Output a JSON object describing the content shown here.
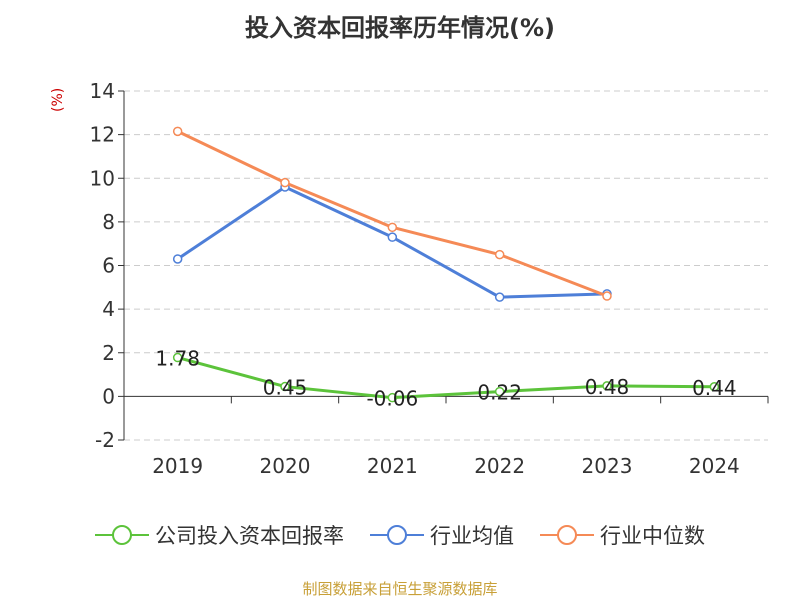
{
  "chart_data": {
    "type": "line",
    "title": "投入资本回报率历年情况(%)",
    "ylabel": "(%)",
    "categories": [
      "2019",
      "2020",
      "2021",
      "2022",
      "2023",
      "2024"
    ],
    "ylim": [
      -2,
      14
    ],
    "yticks": [
      -2,
      0,
      2,
      4,
      6,
      8,
      10,
      12,
      14
    ],
    "grid": true,
    "legend_position": "bottom",
    "series": [
      {
        "name": "公司投入资本回报率",
        "color": "#5cc33b",
        "values": [
          1.78,
          0.45,
          -0.06,
          0.22,
          0.48,
          0.44
        ],
        "labels": [
          "1.78",
          "0.45",
          "-0.06",
          "0.22",
          "0.48",
          "0.44"
        ]
      },
      {
        "name": "行业均值",
        "color": "#4e7fd8",
        "values": [
          6.3,
          9.6,
          7.3,
          4.55,
          4.7,
          null
        ]
      },
      {
        "name": "行业中位数",
        "color": "#f58a56",
        "values": [
          12.15,
          9.8,
          7.75,
          6.5,
          4.6,
          null
        ]
      }
    ]
  },
  "source": "制图数据来自恒生聚源数据库"
}
